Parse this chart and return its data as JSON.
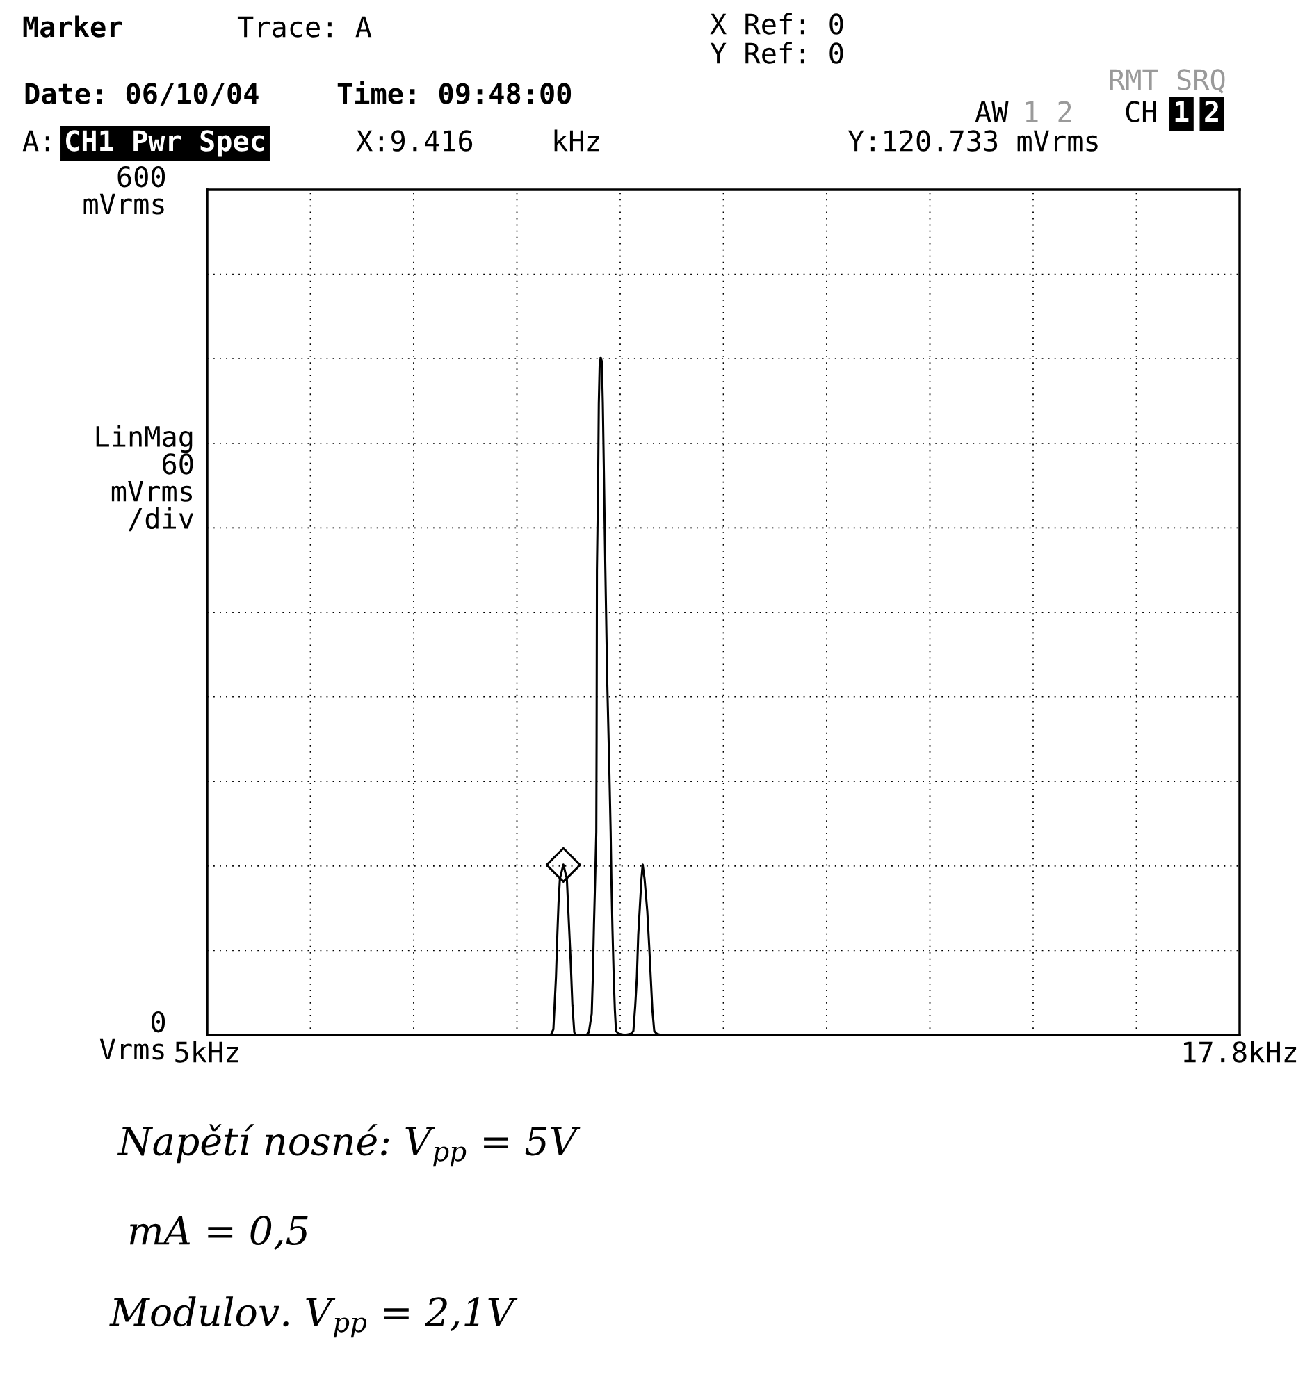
{
  "chart_data": {
    "type": "line",
    "xlim": [
      5,
      17.8
    ],
    "xticks": [
      {
        "value": 5,
        "label": "5kHz"
      },
      {
        "value": 6.28,
        "label": null
      },
      {
        "value": 7.56,
        "label": null
      },
      {
        "value": 8.84,
        "label": null
      },
      {
        "value": 10.12,
        "label": null
      },
      {
        "value": 11.4,
        "label": null
      },
      {
        "value": 12.68,
        "label": null
      },
      {
        "value": 13.96,
        "label": null
      },
      {
        "value": 15.24,
        "label": null
      },
      {
        "value": 16.52,
        "label": null
      },
      {
        "value": 17.8,
        "label": "17.8kHz"
      }
    ],
    "ylim": [
      0,
      600
    ],
    "yticks": [
      {
        "value": 0,
        "label": "0\nVrms"
      },
      {
        "value": 60,
        "label": null
      },
      {
        "value": 120,
        "label": null
      },
      {
        "value": 180,
        "label": null
      },
      {
        "value": 240,
        "label": null
      },
      {
        "value": 300,
        "label": null
      },
      {
        "value": 360,
        "label": null
      },
      {
        "value": 420,
        "label": null
      },
      {
        "value": 480,
        "label": null
      },
      {
        "value": 540,
        "label": null
      },
      {
        "value": 600,
        "label": "600\nmVrms"
      }
    ],
    "ylabel": "LinMag\n60\nmVrms\n/div",
    "grid": true,
    "series": [
      {
        "color": "#000000",
        "x": [
          5.0,
          9.26,
          9.292,
          9.307,
          9.324,
          9.341,
          9.356,
          9.373,
          9.416,
          9.459,
          9.479,
          9.508,
          9.528,
          9.551,
          9.565,
          9.7,
          9.732,
          9.767,
          9.781,
          9.795,
          9.81,
          9.824,
          9.828,
          9.832,
          9.848,
          9.855,
          9.866,
          9.878,
          9.893,
          9.905,
          9.918,
          9.935,
          9.96,
          9.985,
          10.002,
          10.011,
          10.025,
          10.04,
          10.054,
          10.068,
          10.097,
          10.18,
          10.261,
          10.284,
          10.307,
          10.327,
          10.344,
          10.364,
          10.384,
          10.399,
          10.422,
          10.456,
          10.479,
          10.499,
          10.519,
          10.542,
          10.571,
          10.62,
          17.8
        ],
        "values": [
          0,
          0,
          4,
          21,
          41,
          71,
          94,
          111,
          121,
          111,
          86,
          50,
          21,
          2,
          0,
          0,
          2,
          15,
          41,
          78,
          111,
          144,
          213,
          330,
          400,
          448,
          476,
          481,
          478,
          448,
          400,
          335,
          250,
          190,
          144,
          111,
          74,
          41,
          18,
          3,
          1,
          0,
          1,
          3,
          21,
          41,
          71,
          91,
          111,
          121,
          111,
          88,
          64,
          41,
          18,
          3,
          1,
          0,
          0
        ]
      },
      {
        "type": "scatter",
        "marker": "diamond",
        "color": "#000000",
        "x": [
          9.416
        ],
        "values": [
          120.733
        ]
      }
    ],
    "annotations": [
      "Marker",
      "Trace: A",
      "X Ref: 0",
      "Y Ref: 0",
      "Date: 06/10/04",
      "Time: 09:48:00",
      "RMT SRQ",
      "AW",
      "1 2",
      "CH",
      "1",
      "2",
      "A:",
      "CH1 Pwr Spec",
      "X:9.416",
      "kHz",
      "Y:120.733 mVrms",
      "Napětí nosné: V$_{pp}$ = 5V",
      "mA = 0,5",
      "Modulov. V$_{pp}$ = 2,1V"
    ]
  }
}
